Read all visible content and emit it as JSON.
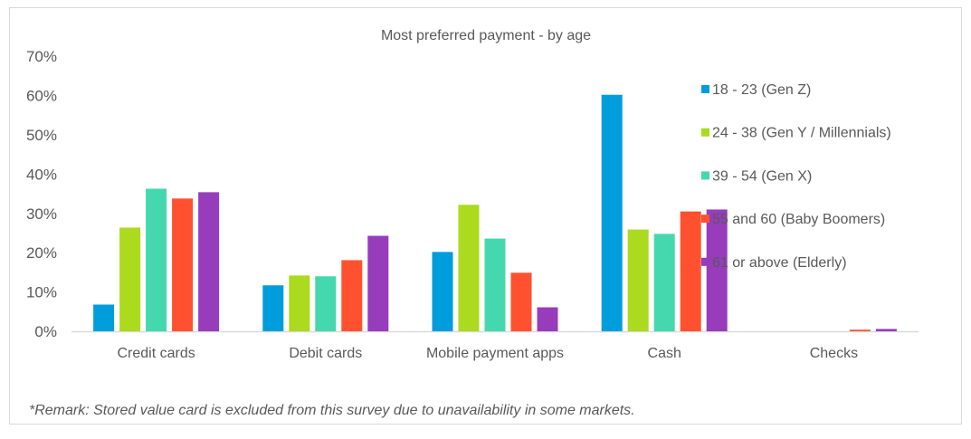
{
  "chart_data": {
    "type": "bar",
    "title": "Most preferred payment - by age",
    "xlabel": "",
    "ylabel": "",
    "ylim": [
      0,
      0.7
    ],
    "yticks": [
      "0%",
      "10%",
      "20%",
      "30%",
      "40%",
      "50%",
      "60%",
      "70%"
    ],
    "grid": false,
    "legend_position": "right",
    "categories": [
      "Credit cards",
      "Debit cards",
      "Mobile payment apps",
      "Cash",
      "Checks"
    ],
    "series": [
      {
        "name": "18 - 23 (Gen Z)",
        "color": "#009DDC",
        "values": [
          0.068,
          0.117,
          0.202,
          0.602,
          0.0
        ]
      },
      {
        "name": "24 - 38 (Gen Y / Millennials)",
        "color": "#ABDA1E",
        "values": [
          0.264,
          0.142,
          0.322,
          0.259,
          0.0
        ]
      },
      {
        "name": "39 - 54 (Gen X)",
        "color": "#45D8AE",
        "values": [
          0.363,
          0.14,
          0.236,
          0.248,
          0.0
        ]
      },
      {
        "name": "55 and 60 (Baby Boomers)",
        "color": "#FF512F",
        "values": [
          0.338,
          0.181,
          0.149,
          0.305,
          0.004
        ]
      },
      {
        "name": "61 or above (Elderly)",
        "color": "#973CBB",
        "values": [
          0.354,
          0.243,
          0.061,
          0.31,
          0.006
        ]
      }
    ],
    "annotation": "*Remark: Stored value card is excluded from this survey due to unavailability in some markets."
  }
}
